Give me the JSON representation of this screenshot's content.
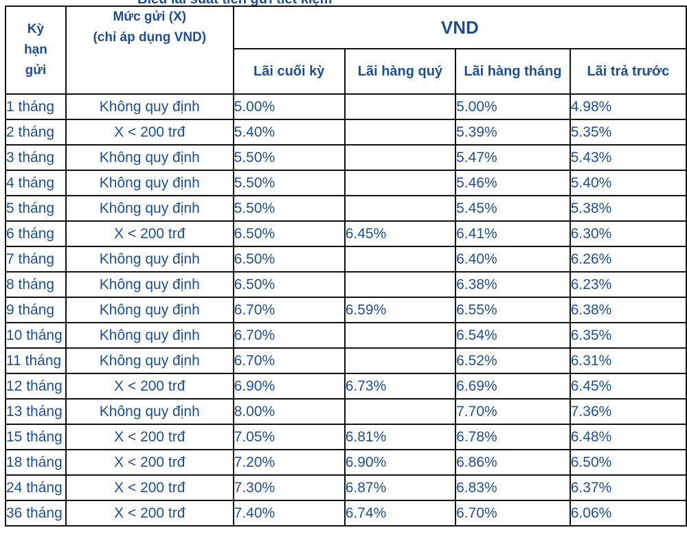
{
  "caption": "Biểu lãi suất tiền gửi tiết kiệm",
  "headers": {
    "term": "Kỳ hạn gửi",
    "amount_line1": "Mức gửi (X)",
    "amount_line2": "(chỉ áp dụng VND)",
    "currency": "VND",
    "col_end": "Lãi cuối kỳ",
    "col_quarterly": "Lãi hàng quý",
    "col_monthly": "Lãi hàng tháng",
    "col_prepaid": "Lãi trả trước"
  },
  "rows": [
    {
      "term": "1 tháng",
      "amount": "Không quy định",
      "end": "5.00%",
      "quarterly": "",
      "monthly": "5.00%",
      "prepaid": "4.98%"
    },
    {
      "term": "2 tháng",
      "amount": "X < 200 trđ",
      "end": "5.40%",
      "quarterly": "",
      "monthly": "5.39%",
      "prepaid": "5.35%"
    },
    {
      "term": "3 tháng",
      "amount": "Không quy định",
      "end": "5.50%",
      "quarterly": "",
      "monthly": "5.47%",
      "prepaid": "5.43%"
    },
    {
      "term": "4 tháng",
      "amount": "Không quy định",
      "end": "5.50%",
      "quarterly": "",
      "monthly": "5.46%",
      "prepaid": "5.40%"
    },
    {
      "term": "5 tháng",
      "amount": "Không quy định",
      "end": "5.50%",
      "quarterly": "",
      "monthly": "5.45%",
      "prepaid": "5.38%"
    },
    {
      "term": "6 tháng",
      "amount": "X < 200 trđ",
      "end": "6.50%",
      "quarterly": "6.45%",
      "monthly": "6.41%",
      "prepaid": "6.30%"
    },
    {
      "term": "7 tháng",
      "amount": "Không quy định",
      "end": "6.50%",
      "quarterly": "",
      "monthly": "6.40%",
      "prepaid": "6.26%"
    },
    {
      "term": "8 tháng",
      "amount": "Không quy định",
      "end": "6.50%",
      "quarterly": "",
      "monthly": "6.38%",
      "prepaid": "6.23%"
    },
    {
      "term": "9 tháng",
      "amount": "Không quy định",
      "end": "6.70%",
      "quarterly": "6.59%",
      "monthly": "6.55%",
      "prepaid": "6.38%"
    },
    {
      "term": "10 tháng",
      "amount": "Không quy định",
      "end": "6.70%",
      "quarterly": "",
      "monthly": "6.54%",
      "prepaid": "6.35%"
    },
    {
      "term": "11 tháng",
      "amount": "Không quy định",
      "end": "6.70%",
      "quarterly": "",
      "monthly": "6.52%",
      "prepaid": "6.31%"
    },
    {
      "term": "12 tháng",
      "amount": "X < 200 trđ",
      "end": "6.90%",
      "quarterly": "6.73%",
      "monthly": "6.69%",
      "prepaid": "6.45%"
    },
    {
      "term": "13 tháng",
      "amount": "Không quy định",
      "end": "8.00%",
      "quarterly": "",
      "monthly": "7.70%",
      "prepaid": "7.36%"
    },
    {
      "term": "15 tháng",
      "amount": "X < 200 trđ",
      "end": "7.05%",
      "quarterly": "6.81%",
      "monthly": "6.78%",
      "prepaid": "6.48%"
    },
    {
      "term": "18 tháng",
      "amount": "X < 200 trđ",
      "end": "7.20%",
      "quarterly": "6.90%",
      "monthly": "6.86%",
      "prepaid": "6.50%"
    },
    {
      "term": "24 tháng",
      "amount": "X < 200 trđ",
      "end": "7.30%",
      "quarterly": "6.87%",
      "monthly": "6.83%",
      "prepaid": "6.37%"
    },
    {
      "term": "36  tháng",
      "amount": "X < 200 trđ",
      "end": "7.40%",
      "quarterly": "6.74%",
      "monthly": "6.70%",
      "prepaid": "6.06%"
    }
  ],
  "colors": {
    "text": "#1f4e8c",
    "border": "#111111"
  }
}
